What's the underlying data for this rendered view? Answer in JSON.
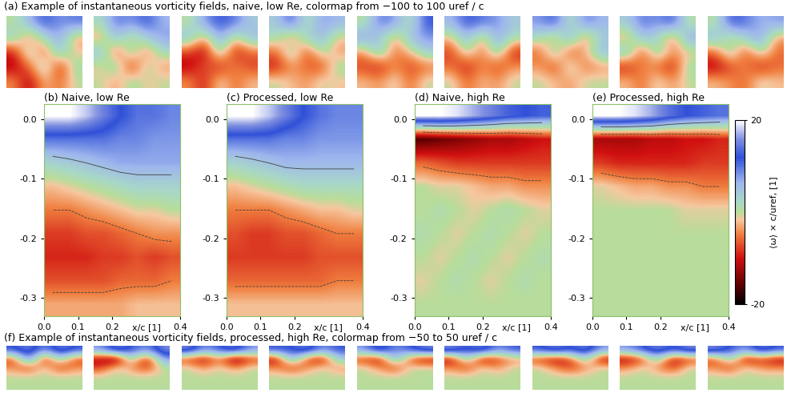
{
  "chart_data": [
    {
      "type": "heatmap_row",
      "title": "(a) Example of instantaneous vorticity fields, naive, low Re, colormap from −100 to 100 uref / c",
      "color_range": [
        -100,
        100
      ],
      "tick_labels": false,
      "panels": [
        [
          [
            0,
            30,
            60,
            40,
            50
          ],
          [
            20,
            -30,
            10,
            40,
            -20
          ],
          [
            -50,
            20,
            -40,
            30,
            -10
          ],
          [
            -60,
            -30,
            20,
            -50,
            10
          ],
          [
            -20,
            -60,
            -10,
            -30,
            0
          ]
        ],
        [
          [
            10,
            50,
            40,
            60,
            30
          ],
          [
            -20,
            30,
            -10,
            20,
            40
          ],
          [
            30,
            -40,
            20,
            -30,
            10
          ],
          [
            -10,
            20,
            -50,
            10,
            -20
          ],
          [
            0,
            -20,
            10,
            -10,
            0
          ]
        ],
        [
          [
            0,
            40,
            60,
            50,
            20
          ],
          [
            30,
            -20,
            40,
            -10,
            30
          ],
          [
            -40,
            -60,
            20,
            -50,
            -30
          ],
          [
            -60,
            -30,
            -50,
            -20,
            -40
          ],
          [
            -20,
            -50,
            0,
            -30,
            -10
          ]
        ],
        [
          [
            20,
            60,
            0,
            40,
            30
          ],
          [
            10,
            -30,
            20,
            30,
            -10
          ],
          [
            -30,
            20,
            -40,
            10,
            -20
          ],
          [
            -50,
            -20,
            -30,
            -40,
            10
          ],
          [
            0,
            -10,
            -20,
            0,
            -10
          ]
        ],
        [
          [
            0,
            50,
            40,
            0,
            60
          ],
          [
            40,
            20,
            -20,
            30,
            40
          ],
          [
            -20,
            30,
            -30,
            -10,
            20
          ],
          [
            -40,
            -50,
            -20,
            -40,
            -30
          ],
          [
            -10,
            -20,
            0,
            -30,
            0
          ]
        ],
        [
          [
            30,
            60,
            50,
            40,
            20
          ],
          [
            -10,
            30,
            -20,
            40,
            10
          ],
          [
            -40,
            10,
            -30,
            20,
            -50
          ],
          [
            -30,
            -50,
            -20,
            -40,
            -20
          ],
          [
            0,
            -30,
            -10,
            -20,
            0
          ]
        ],
        [
          [
            40,
            60,
            0,
            50,
            30
          ],
          [
            10,
            -20,
            40,
            -30,
            20
          ],
          [
            -30,
            20,
            -40,
            -10,
            30
          ],
          [
            -20,
            -40,
            10,
            -30,
            -20
          ],
          [
            0,
            -10,
            -20,
            0,
            0
          ]
        ],
        [
          [
            20,
            50,
            40,
            60,
            0
          ],
          [
            -20,
            30,
            10,
            -30,
            40
          ],
          [
            30,
            -40,
            20,
            -20,
            -10
          ],
          [
            -50,
            -20,
            -30,
            -50,
            10
          ],
          [
            -10,
            -30,
            0,
            -20,
            0
          ]
        ],
        [
          [
            0,
            60,
            50,
            30,
            40
          ],
          [
            30,
            -10,
            20,
            40,
            -20
          ],
          [
            -30,
            20,
            -40,
            10,
            -30
          ],
          [
            -60,
            -40,
            -20,
            -50,
            -30
          ],
          [
            -10,
            -20,
            -30,
            0,
            -10
          ]
        ]
      ]
    },
    {
      "type": "heatmap",
      "title": "(b) Naive, low Re",
      "xlabel": "x/c [1]",
      "xlim": [
        0.0,
        0.4
      ],
      "ylim": [
        -0.33,
        0.025
      ],
      "xticks": [
        0.0,
        0.1,
        0.2,
        0.4
      ],
      "yticks": [
        0.0,
        -0.1,
        -0.2,
        -0.3
      ],
      "color_range": [
        -20,
        20
      ],
      "contour_levels": [
        -5,
        5
      ],
      "cells": [
        [
          20,
          20,
          18,
          15,
          12,
          10,
          10,
          9
        ],
        [
          10,
          10,
          10,
          10,
          9,
          9,
          8,
          8
        ],
        [
          3,
          4,
          5,
          6,
          7,
          7,
          7,
          7
        ],
        [
          -2,
          -1,
          0,
          1,
          2,
          3,
          3,
          3
        ],
        [
          -5,
          -5,
          -4,
          -3,
          -2,
          -1,
          -1,
          0
        ],
        [
          -8,
          -8,
          -7,
          -7,
          -6,
          -5,
          -4,
          -4
        ],
        [
          -9,
          -9,
          -9,
          -8,
          -8,
          -7,
          -8,
          -7
        ],
        [
          -7,
          -7,
          -7,
          -7,
          -6,
          -6,
          -6,
          -5
        ],
        [
          -3,
          -3,
          -3,
          -3,
          -3,
          -2,
          -2,
          -2
        ]
      ]
    },
    {
      "type": "heatmap",
      "title": "(c) Processed, low Re",
      "xlabel": "x/c [1]",
      "xlim": [
        0.0,
        0.4
      ],
      "ylim": [
        -0.33,
        0.025
      ],
      "xticks": [
        0.0,
        0.1,
        0.2,
        0.4
      ],
      "yticks": [
        0.0,
        -0.1,
        -0.2,
        -0.3
      ],
      "color_range": [
        -20,
        20
      ],
      "contour_levels": [
        -5,
        5
      ],
      "cells": [
        [
          20,
          20,
          18,
          15,
          12,
          10,
          9,
          9
        ],
        [
          10,
          10,
          10,
          9,
          9,
          8,
          8,
          8
        ],
        [
          3,
          4,
          5,
          6,
          6,
          6,
          6,
          6
        ],
        [
          -2,
          -1,
          0,
          1,
          2,
          2,
          2,
          2
        ],
        [
          -5,
          -5,
          -5,
          -4,
          -3,
          -2,
          -2,
          -1
        ],
        [
          -7,
          -8,
          -8,
          -7,
          -7,
          -6,
          -5,
          -5
        ],
        [
          -8,
          -8,
          -8,
          -8,
          -8,
          -7,
          -7,
          -7
        ],
        [
          -6,
          -6,
          -6,
          -6,
          -6,
          -6,
          -5,
          -5
        ],
        [
          -2,
          -2,
          -2,
          -2,
          -2,
          -2,
          -2,
          -2
        ]
      ]
    },
    {
      "type": "heatmap",
      "title": "(d) Naive, high Re",
      "xlabel": "x/c [1]",
      "xlim": [
        0.0,
        0.4
      ],
      "ylim": [
        -0.33,
        0.025
      ],
      "xticks": [
        0.0,
        0.1,
        0.2,
        0.4
      ],
      "yticks": [
        0.0,
        -0.1,
        -0.2,
        -0.3
      ],
      "color_range": [
        -20,
        20
      ],
      "contour_levels": [
        -5,
        5
      ],
      "cells": [
        [
          20,
          20,
          19,
          17,
          15,
          13,
          12,
          11
        ],
        [
          -16,
          -15,
          -14,
          -13,
          -12,
          -12,
          -11,
          -10
        ],
        [
          -6,
          -7,
          -8,
          -8,
          -8,
          -8,
          -8,
          -8
        ],
        [
          0,
          -1,
          -1,
          -2,
          -3,
          -3,
          -4,
          -4
        ],
        [
          0,
          1,
          0,
          -1,
          0,
          1,
          0,
          -1
        ],
        [
          1,
          0,
          -1,
          0,
          1,
          0,
          -1,
          0
        ],
        [
          0,
          -1,
          0,
          1,
          0,
          -1,
          0,
          1
        ],
        [
          -1,
          0,
          1,
          0,
          -1,
          0,
          1,
          0
        ],
        [
          0,
          0,
          0,
          0,
          0,
          0,
          0,
          0
        ]
      ]
    },
    {
      "type": "heatmap",
      "title": "(e) Processed, high Re",
      "xlabel": "x/c [1]",
      "xlim": [
        0.0,
        0.4
      ],
      "ylim": [
        -0.33,
        0.025
      ],
      "xticks": [
        0.0,
        0.1,
        0.2,
        0.4
      ],
      "yticks": [
        0.0,
        -0.1,
        -0.2,
        -0.3
      ],
      "color_range": [
        -20,
        20
      ],
      "contour_levels": [
        -5,
        5
      ],
      "cells": [
        [
          20,
          20,
          19,
          17,
          14,
          12,
          11,
          10
        ],
        [
          -12,
          -12,
          -12,
          -11,
          -11,
          -10,
          -10,
          -9
        ],
        [
          -8,
          -9,
          -9,
          -9,
          -9,
          -9,
          -8,
          -8
        ],
        [
          -1,
          -2,
          -3,
          -3,
          -4,
          -4,
          -5,
          -5
        ],
        [
          0,
          0,
          0,
          0,
          0,
          -1,
          -1,
          -1
        ],
        [
          0,
          0,
          0,
          0,
          0,
          0,
          0,
          0
        ],
        [
          0,
          0,
          0,
          0,
          0,
          0,
          0,
          0
        ],
        [
          0,
          0,
          0,
          0,
          0,
          0,
          0,
          0
        ],
        [
          0,
          0,
          0,
          0,
          0,
          0,
          0,
          0
        ]
      ],
      "colorbar": {
        "label": "⟨ω⟩ × c/uref, [1]",
        "range": [
          -20,
          20
        ],
        "ticks": [
          20,
          -20
        ]
      }
    },
    {
      "type": "heatmap_row",
      "title": "(f) Example of instantaneous vorticity fields, processed, high Re, colormap from −50 to 50 uref / c",
      "color_range": [
        -50,
        50
      ],
      "tick_labels": false,
      "panels": [
        [
          [
            30,
            40,
            20,
            40,
            30
          ],
          [
            -20,
            30,
            -30,
            10,
            -20
          ],
          [
            -10,
            -20,
            0,
            -20,
            -10
          ],
          [
            0,
            0,
            0,
            0,
            0
          ],
          [
            0,
            0,
            0,
            0,
            0
          ]
        ],
        [
          [
            20,
            40,
            30,
            20,
            40
          ],
          [
            -30,
            -40,
            10,
            -30,
            20
          ],
          [
            -20,
            0,
            -10,
            -20,
            0
          ],
          [
            0,
            0,
            0,
            0,
            0
          ],
          [
            0,
            0,
            0,
            0,
            0
          ]
        ],
        [
          [
            40,
            20,
            30,
            40,
            20
          ],
          [
            -20,
            -30,
            -10,
            -40,
            -20
          ],
          [
            0,
            -10,
            0,
            -10,
            0
          ],
          [
            0,
            0,
            0,
            0,
            0
          ],
          [
            0,
            0,
            0,
            0,
            0
          ]
        ],
        [
          [
            30,
            30,
            40,
            20,
            30
          ],
          [
            -30,
            20,
            -20,
            -30,
            10
          ],
          [
            -10,
            -20,
            -10,
            0,
            -10
          ],
          [
            0,
            0,
            0,
            0,
            0
          ],
          [
            0,
            0,
            0,
            0,
            0
          ]
        ],
        [
          [
            20,
            40,
            20,
            30,
            40
          ],
          [
            -20,
            -30,
            20,
            -20,
            -30
          ],
          [
            0,
            -10,
            -20,
            0,
            0
          ],
          [
            0,
            0,
            0,
            0,
            0
          ],
          [
            0,
            0,
            0,
            0,
            0
          ]
        ],
        [
          [
            40,
            30,
            40,
            20,
            30
          ],
          [
            -30,
            10,
            -30,
            -20,
            -10
          ],
          [
            -10,
            -20,
            0,
            -10,
            0
          ],
          [
            0,
            0,
            0,
            0,
            0
          ],
          [
            0,
            0,
            0,
            0,
            0
          ]
        ],
        [
          [
            30,
            40,
            30,
            40,
            20
          ],
          [
            -20,
            -30,
            -20,
            10,
            -30
          ],
          [
            0,
            -10,
            -20,
            -10,
            0
          ],
          [
            0,
            0,
            0,
            0,
            0
          ],
          [
            0,
            0,
            0,
            0,
            0
          ]
        ],
        [
          [
            20,
            30,
            40,
            30,
            40
          ],
          [
            -30,
            -20,
            10,
            -30,
            -20
          ],
          [
            -10,
            0,
            -10,
            -20,
            0
          ],
          [
            0,
            0,
            0,
            0,
            0
          ],
          [
            0,
            0,
            0,
            0,
            0
          ]
        ],
        [
          [
            40,
            30,
            20,
            40,
            30
          ],
          [
            -20,
            10,
            -30,
            -20,
            -30
          ],
          [
            -10,
            -20,
            0,
            -10,
            -10
          ],
          [
            0,
            0,
            0,
            0,
            0
          ],
          [
            0,
            0,
            0,
            0,
            0
          ]
        ]
      ]
    }
  ]
}
